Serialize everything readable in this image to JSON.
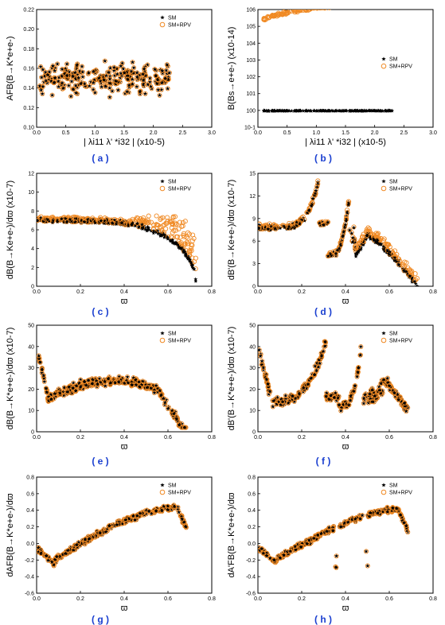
{
  "chart_data": [
    {
      "id": "a",
      "panel_label": "( a )",
      "type": "scatter",
      "xlabel": "| λi11 λ' *i32 | (x10-5)",
      "ylabel": "AFB(B→K*e+e-)",
      "xlim": [
        0.0,
        3.0
      ],
      "ylim": [
        0.1,
        0.22
      ],
      "xticks": [
        "0.0",
        "0.5",
        "1.0",
        "1.5",
        "2.0",
        "2.5",
        "3.0"
      ],
      "yticks": [
        "0.10",
        "0.12",
        "0.14",
        "0.16",
        "0.18",
        "0.20",
        "0.22"
      ],
      "legend": {
        "placement": "top-right",
        "entries": [
          "SM",
          "SM+RPV"
        ]
      },
      "gen": {
        "kind": "band",
        "x0": 0.05,
        "x1": 2.3,
        "ymin": 0.127,
        "ymax": 0.172,
        "n": 260
      },
      "series": [
        {
          "name": "SM",
          "color": "#000000",
          "marker": "star"
        },
        {
          "name": "SM+RPV",
          "color": "#f08a24",
          "marker": "circle"
        }
      ]
    },
    {
      "id": "b",
      "panel_label": "( b )",
      "type": "scatter",
      "xlabel": "| λi11 λ' *i32 | (x10-5)",
      "ylabel": "B(Bs→e+e-) (x10-14)",
      "xlim": [
        0.0,
        3.0
      ],
      "ylim": [
        0.1,
        1000000
      ],
      "log_y": true,
      "xticks": [
        "0.0",
        "0.5",
        "1.0",
        "1.5",
        "2.0",
        "2.5",
        "3.0"
      ],
      "yticks": [
        "10-1",
        "100",
        "101",
        "102",
        "103",
        "104",
        "105",
        "106"
      ],
      "legend": {
        "placement": "middle-right",
        "entries": [
          "SM",
          "SM+RPV"
        ]
      },
      "gen": {
        "kind": "rpv_growth",
        "x0": 0.1,
        "x1": 2.3,
        "sm_value": 0.95,
        "n": 200
      },
      "series": [
        {
          "name": "SM",
          "color": "#000000",
          "marker": "star"
        },
        {
          "name": "SM+RPV",
          "color": "#f08a24",
          "marker": "circle"
        }
      ]
    },
    {
      "id": "c",
      "panel_label": "( c )",
      "type": "scatter",
      "xlabel": "ϖ",
      "ylabel": "dB(B→Ke+e-)/dϖ (x10-7)",
      "xlim": [
        0.0,
        0.9
      ],
      "ylim": [
        0,
        12
      ],
      "xticks": [
        "0.0",
        "0.2",
        "0.4",
        "0.6",
        "0.8"
      ],
      "yticks": [
        "0",
        "2",
        "4",
        "6",
        "8",
        "10",
        "12"
      ],
      "legend": {
        "placement": "top-right",
        "entries": [
          "SM",
          "SM+RPV"
        ]
      },
      "gen": {
        "kind": "falloff",
        "x0": 0.0,
        "x1": 0.82,
        "top": 7.0,
        "spread": 0.9,
        "n": 320
      },
      "series": [
        {
          "name": "SM",
          "color": "#000000",
          "marker": "star"
        },
        {
          "name": "SM+RPV",
          "color": "#f08a24",
          "marker": "circle"
        }
      ]
    },
    {
      "id": "d",
      "panel_label": "( d )",
      "type": "scatter",
      "xlabel": "ϖ",
      "ylabel": "dB'(B→Ke+e-)/dϖ (x10-7)",
      "xlim": [
        0.0,
        0.9
      ],
      "ylim": [
        0,
        15
      ],
      "xticks": [
        "0.0",
        "0.2",
        "0.4",
        "0.6",
        "0.8"
      ],
      "yticks": [
        "0",
        "3",
        "6",
        "9",
        "12",
        "15"
      ],
      "legend": {
        "placement": "top-right",
        "entries": [
          "SM",
          "SM+RPV"
        ]
      },
      "gen": {
        "kind": "resonance_c",
        "n": 320
      },
      "series": [
        {
          "name": "SM",
          "color": "#000000",
          "marker": "star"
        },
        {
          "name": "SM+RPV",
          "color": "#f08a24",
          "marker": "circle"
        }
      ]
    },
    {
      "id": "e",
      "panel_label": "( e )",
      "type": "scatter",
      "xlabel": "ϖ",
      "ylabel": "dB(B→K*e+e-)/dϖ (x10-7)",
      "xlim": [
        0.0,
        0.8
      ],
      "ylim": [
        0,
        50
      ],
      "xticks": [
        "0.0",
        "0.2",
        "0.4",
        "0.6",
        "0.8"
      ],
      "yticks": [
        "0",
        "10",
        "20",
        "30",
        "40",
        "50"
      ],
      "legend": {
        "placement": "top-right",
        "entries": [
          "SM",
          "SM+RPV"
        ]
      },
      "gen": {
        "kind": "kstar_rate",
        "n": 320
      },
      "series": [
        {
          "name": "SM",
          "color": "#000000",
          "marker": "star"
        },
        {
          "name": "SM+RPV",
          "color": "#f08a24",
          "marker": "circle"
        }
      ]
    },
    {
      "id": "f",
      "panel_label": "( f )",
      "type": "scatter",
      "xlabel": "ϖ",
      "ylabel": "dB'(B→K*e+e-)/dϖ (x10-7)",
      "xlim": [
        0.0,
        0.8
      ],
      "ylim": [
        0,
        50
      ],
      "xticks": [
        "0.0",
        "0.2",
        "0.4",
        "0.6",
        "0.8"
      ],
      "yticks": [
        "0",
        "10",
        "20",
        "30",
        "40",
        "50"
      ],
      "legend": {
        "placement": "top-right",
        "entries": [
          "SM",
          "SM+RPV"
        ]
      },
      "gen": {
        "kind": "kstar_resonance",
        "n": 320
      },
      "series": [
        {
          "name": "SM",
          "color": "#000000",
          "marker": "star"
        },
        {
          "name": "SM+RPV",
          "color": "#f08a24",
          "marker": "circle"
        }
      ]
    },
    {
      "id": "g",
      "panel_label": "( g )",
      "type": "scatter",
      "xlabel": "ϖ",
      "ylabel": "dAFB(B→K*e+e-)/dϖ",
      "xlim": [
        0.0,
        0.8
      ],
      "ylim": [
        -0.6,
        0.8
      ],
      "xticks": [
        "0.0",
        "0.2",
        "0.4",
        "0.6",
        "0.8"
      ],
      "yticks": [
        "-0.6",
        "-0.4",
        "-0.2",
        "0.0",
        "0.2",
        "0.4",
        "0.6",
        "0.8"
      ],
      "legend": {
        "placement": "top-right",
        "entries": [
          "SM",
          "SM+RPV"
        ]
      },
      "gen": {
        "kind": "afb",
        "n": 300
      },
      "series": [
        {
          "name": "SM",
          "color": "#000000",
          "marker": "star"
        },
        {
          "name": "SM+RPV",
          "color": "#f08a24",
          "marker": "circle"
        }
      ]
    },
    {
      "id": "h",
      "panel_label": "( h )",
      "type": "scatter",
      "xlabel": "ϖ",
      "ylabel": "dA'FB(B→K*e+e-)/dϖ",
      "xlim": [
        0.0,
        0.8
      ],
      "ylim": [
        -0.6,
        0.8
      ],
      "xticks": [
        "0.0",
        "0.2",
        "0.4",
        "0.6",
        "0.8"
      ],
      "yticks": [
        "-0.6",
        "-0.4",
        "-0.2",
        "0.0",
        "0.2",
        "0.4",
        "0.6",
        "0.8"
      ],
      "legend": {
        "placement": "top-right",
        "entries": [
          "SM",
          "SM+RPV"
        ]
      },
      "gen": {
        "kind": "afb_resonance",
        "n": 300
      },
      "series": [
        {
          "name": "SM",
          "color": "#000000",
          "marker": "star"
        },
        {
          "name": "SM+RPV",
          "color": "#f08a24",
          "marker": "circle"
        }
      ]
    }
  ]
}
